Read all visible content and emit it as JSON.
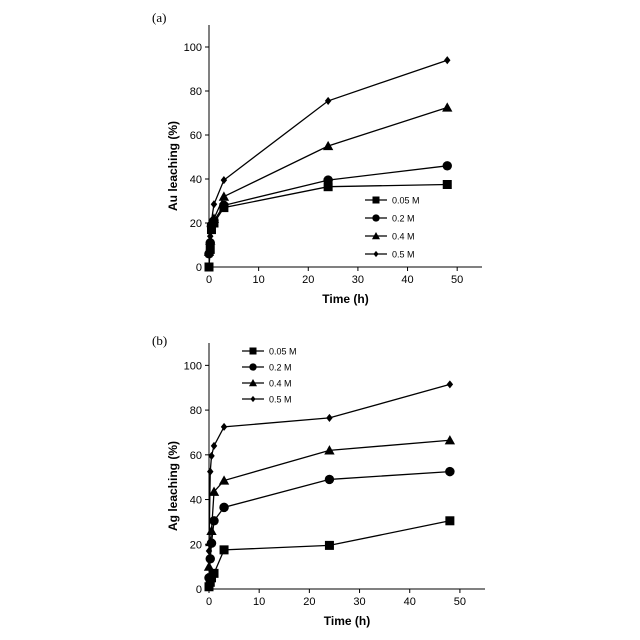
{
  "figure": {
    "colors": {
      "line": "#000000",
      "marker": "#000000",
      "background": "#ffffff"
    }
  },
  "chart_data": [
    {
      "panel": "(a)",
      "type": "line",
      "xlabel": "Time (h)",
      "ylabel": "Au leaching (%)",
      "xlim": [
        0,
        55
      ],
      "ylim": [
        0,
        110
      ],
      "xticks": [
        0,
        10,
        20,
        30,
        40,
        50
      ],
      "yticks": [
        0,
        20,
        40,
        60,
        80,
        100
      ],
      "legend_position": "lower-right",
      "series": [
        {
          "name": "0.05 M",
          "marker": "square",
          "x": [
            0,
            0.25,
            0.5,
            1,
            3,
            24,
            48
          ],
          "y": [
            0,
            8,
            17,
            20,
            27,
            36.5,
            37.5
          ]
        },
        {
          "name": "0.2 M",
          "marker": "circle",
          "x": [
            0,
            0.25,
            0.5,
            1,
            3,
            24,
            48
          ],
          "y": [
            6,
            11,
            19,
            21,
            28,
            39.5,
            46
          ]
        },
        {
          "name": "0.4 M",
          "marker": "triangle",
          "x": [
            0,
            0.25,
            0.5,
            1,
            3,
            24,
            48
          ],
          "y": [
            7,
            12,
            20,
            22,
            32,
            55,
            72.5
          ]
        },
        {
          "name": "0.5 M",
          "marker": "diamond",
          "x": [
            0,
            0.25,
            0.5,
            1,
            3,
            24,
            48
          ],
          "y": [
            8,
            14,
            21,
            28.5,
            39.5,
            75.5,
            94
          ]
        }
      ]
    },
    {
      "panel": "(b)",
      "type": "line",
      "xlabel": "Time (h)",
      "ylabel": "Ag leaching (%)",
      "xlim": [
        0,
        55
      ],
      "ylim": [
        0,
        110
      ],
      "xticks": [
        0,
        10,
        20,
        30,
        40,
        50
      ],
      "yticks": [
        0,
        20,
        40,
        60,
        80,
        100
      ],
      "legend_position": "upper-left",
      "series": [
        {
          "name": "0.05 M",
          "marker": "square",
          "x": [
            0,
            0.25,
            0.5,
            1,
            3,
            24,
            48
          ],
          "y": [
            1,
            3,
            5,
            7,
            17.5,
            19.5,
            30.5
          ]
        },
        {
          "name": "0.2 M",
          "marker": "circle",
          "x": [
            0,
            0.25,
            0.5,
            1,
            3,
            24,
            48
          ],
          "y": [
            5,
            13.5,
            20.5,
            30.5,
            36.5,
            49,
            52.5
          ]
        },
        {
          "name": "0.4 M",
          "marker": "triangle",
          "x": [
            0,
            0.25,
            0.5,
            1,
            3,
            24,
            48
          ],
          "y": [
            10,
            21,
            26,
            43.5,
            48.5,
            62,
            66.5
          ]
        },
        {
          "name": "0.5 M",
          "marker": "diamond",
          "x": [
            0,
            0.25,
            0.5,
            1,
            3,
            24,
            48
          ],
          "y": [
            17,
            52.5,
            59.5,
            64,
            72.5,
            76.5,
            91.5
          ]
        }
      ]
    }
  ]
}
